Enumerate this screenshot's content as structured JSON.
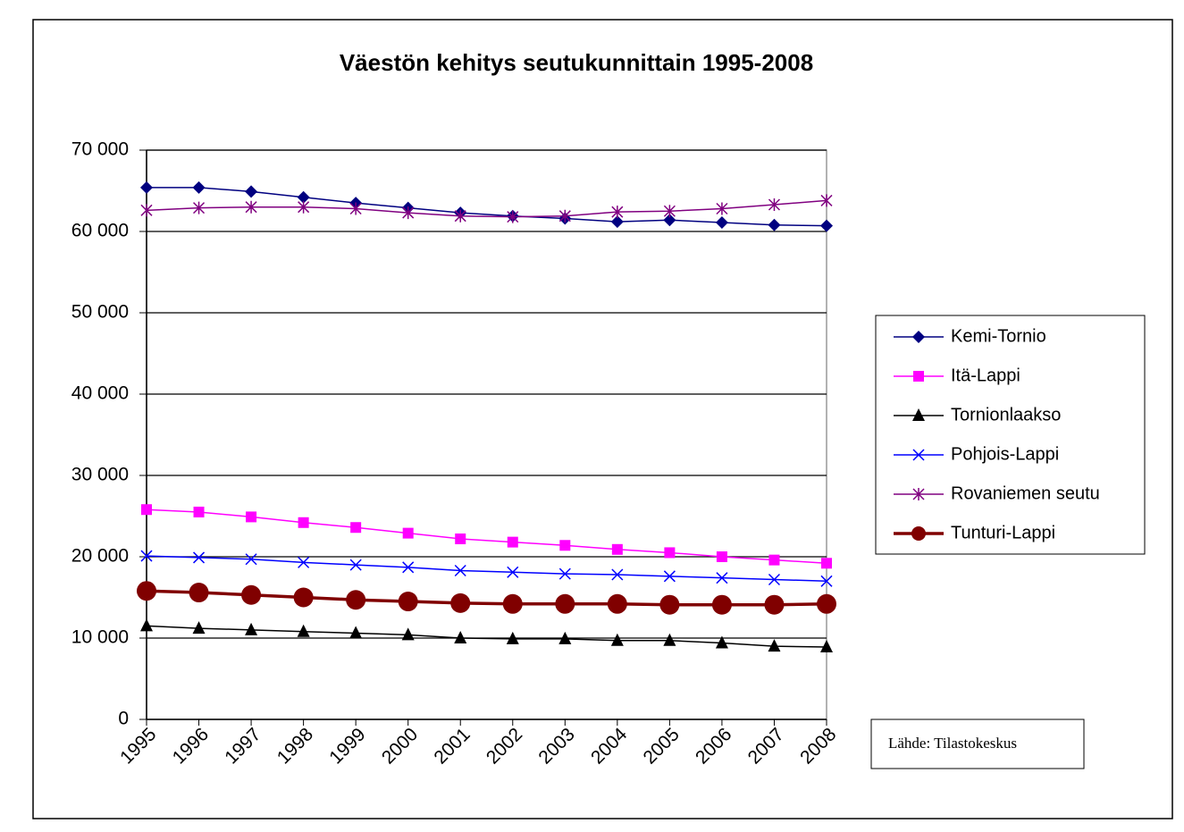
{
  "chart_data": {
    "type": "line",
    "title": "Väestön kehitys seutukunnittain 1995-2008",
    "source": "Lähde: Tilastokeskus",
    "categories": [
      "1995",
      "1996",
      "1997",
      "1998",
      "1999",
      "2000",
      "2001",
      "2002",
      "2003",
      "2004",
      "2005",
      "2006",
      "2007",
      "2008"
    ],
    "series": [
      {
        "name": "Kemi-Tornio",
        "color": "#000080",
        "marker": "diamond",
        "values": [
          65400,
          65400,
          64900,
          64200,
          63500,
          62900,
          62300,
          61900,
          61600,
          61200,
          61400,
          61100,
          60800,
          60700
        ]
      },
      {
        "name": "Itä-Lappi",
        "color": "#ff00ff",
        "marker": "square",
        "values": [
          25800,
          25500,
          24900,
          24200,
          23600,
          22900,
          22200,
          21800,
          21400,
          20900,
          20500,
          20000,
          19600,
          19200
        ]
      },
      {
        "name": "Tornionlaakso",
        "color": "#000000",
        "marker": "triangle",
        "values": [
          11500,
          11200,
          11000,
          10800,
          10600,
          10400,
          10000,
          9900,
          9900,
          9700,
          9700,
          9400,
          9000,
          8900
        ]
      },
      {
        "name": "Pohjois-Lappi",
        "color": "#0000ff",
        "marker": "x",
        "values": [
          20100,
          19900,
          19700,
          19300,
          19000,
          18700,
          18300,
          18100,
          17900,
          17800,
          17600,
          17400,
          17200,
          17000
        ]
      },
      {
        "name": "Rovaniemen seutu",
        "color": "#800080",
        "marker": "star",
        "values": [
          62600,
          62900,
          63000,
          63000,
          62800,
          62300,
          61900,
          61800,
          61900,
          62400,
          62500,
          62800,
          63300,
          63800
        ]
      },
      {
        "name": "Tunturi-Lappi",
        "color": "#800000",
        "marker": "circle",
        "values": [
          15800,
          15600,
          15300,
          15000,
          14700,
          14500,
          14300,
          14200,
          14200,
          14200,
          14100,
          14100,
          14100,
          14200
        ]
      }
    ],
    "ylim": [
      0,
      70000
    ],
    "yticks": [
      0,
      {
        "value": 10000,
        "label": "10 000"
      },
      {
        "value": 20000,
        "label": "20 000"
      },
      {
        "value": 30000,
        "label": "30 000"
      },
      {
        "value": 40000,
        "label": "40 000"
      },
      {
        "value": 50000,
        "label": "50 000"
      },
      {
        "value": 60000,
        "label": "60 000"
      },
      {
        "value": 70000,
        "label": "70 000"
      }
    ],
    "grid": true
  }
}
